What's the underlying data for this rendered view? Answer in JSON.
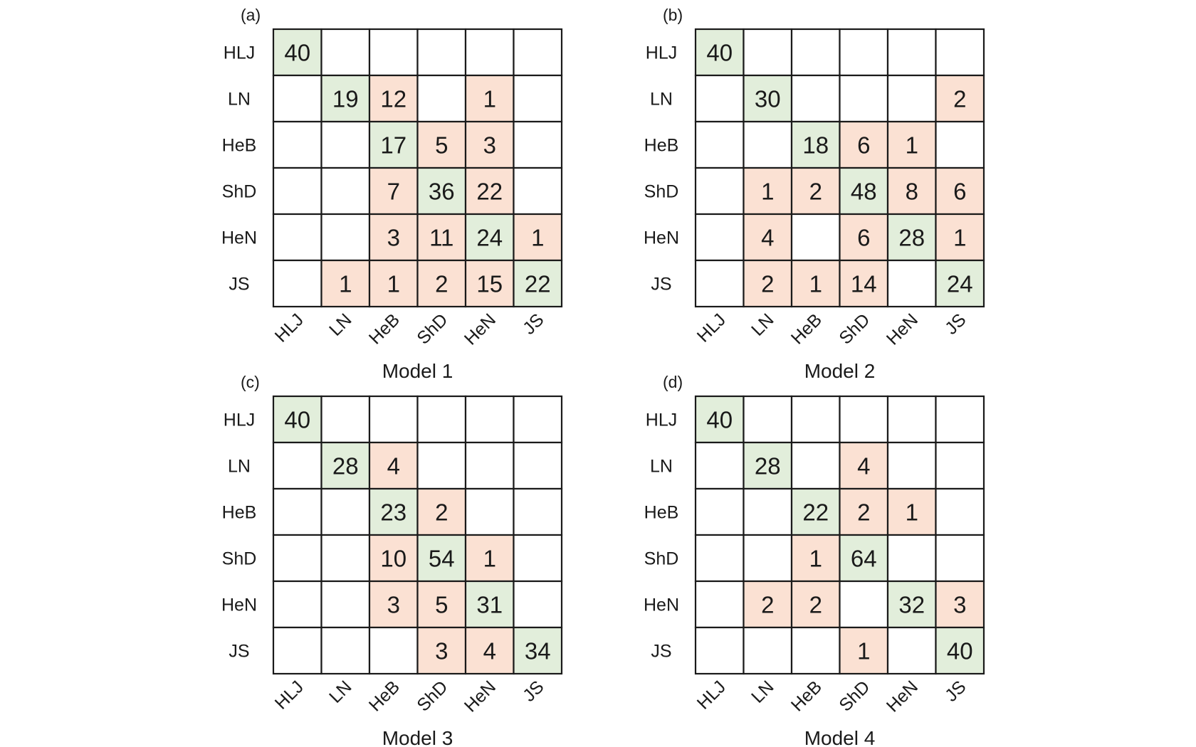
{
  "chart_data": [
    {
      "type": "heatmap",
      "panel_label": "(a)",
      "title": "Model 1",
      "row_labels": [
        "HLJ",
        "LN",
        "HeB",
        "ShD",
        "HeN",
        "JS"
      ],
      "col_labels": [
        "HLJ",
        "LN",
        "HeB",
        "ShD",
        "HeN",
        "JS"
      ],
      "matrix": [
        [
          40,
          null,
          null,
          null,
          null,
          null
        ],
        [
          null,
          19,
          12,
          null,
          1,
          null
        ],
        [
          null,
          null,
          17,
          5,
          3,
          null
        ],
        [
          null,
          null,
          7,
          36,
          22,
          null
        ],
        [
          null,
          null,
          3,
          11,
          24,
          1
        ],
        [
          null,
          1,
          1,
          2,
          15,
          22
        ]
      ]
    },
    {
      "type": "heatmap",
      "panel_label": "(b)",
      "title": "Model 2",
      "row_labels": [
        "HLJ",
        "LN",
        "HeB",
        "ShD",
        "HeN",
        "JS"
      ],
      "col_labels": [
        "HLJ",
        "LN",
        "HeB",
        "ShD",
        "HeN",
        "JS"
      ],
      "matrix": [
        [
          40,
          null,
          null,
          null,
          null,
          null
        ],
        [
          null,
          30,
          null,
          null,
          null,
          2
        ],
        [
          null,
          null,
          18,
          6,
          1,
          null
        ],
        [
          null,
          1,
          2,
          48,
          8,
          6
        ],
        [
          null,
          4,
          null,
          6,
          28,
          1
        ],
        [
          null,
          2,
          1,
          14,
          null,
          24
        ]
      ]
    },
    {
      "type": "heatmap",
      "panel_label": "(c)",
      "title": "Model 3",
      "row_labels": [
        "HLJ",
        "LN",
        "HeB",
        "ShD",
        "HeN",
        "JS"
      ],
      "col_labels": [
        "HLJ",
        "LN",
        "HeB",
        "ShD",
        "HeN",
        "JS"
      ],
      "matrix": [
        [
          40,
          null,
          null,
          null,
          null,
          null
        ],
        [
          null,
          28,
          4,
          null,
          null,
          null
        ],
        [
          null,
          null,
          23,
          2,
          null,
          null
        ],
        [
          null,
          null,
          10,
          54,
          1,
          null
        ],
        [
          null,
          null,
          3,
          5,
          31,
          null
        ],
        [
          null,
          null,
          null,
          3,
          4,
          34
        ]
      ]
    },
    {
      "type": "heatmap",
      "panel_label": "(d)",
      "title": "Model 4",
      "row_labels": [
        "HLJ",
        "LN",
        "HeB",
        "ShD",
        "HeN",
        "JS"
      ],
      "col_labels": [
        "HLJ",
        "LN",
        "HeB",
        "ShD",
        "HeN",
        "JS"
      ],
      "matrix": [
        [
          40,
          null,
          null,
          null,
          null,
          null
        ],
        [
          null,
          28,
          null,
          4,
          null,
          null
        ],
        [
          null,
          null,
          22,
          2,
          1,
          null
        ],
        [
          null,
          null,
          1,
          64,
          null,
          null
        ],
        [
          null,
          2,
          2,
          null,
          32,
          3
        ],
        [
          null,
          null,
          null,
          1,
          null,
          40
        ]
      ]
    }
  ],
  "colors": {
    "diagonal_fill": "#e2eedb",
    "off_diagonal_fill": "#fbe1d3",
    "empty_fill": "#ffffff",
    "grid_stroke": "#1a1a1a"
  }
}
